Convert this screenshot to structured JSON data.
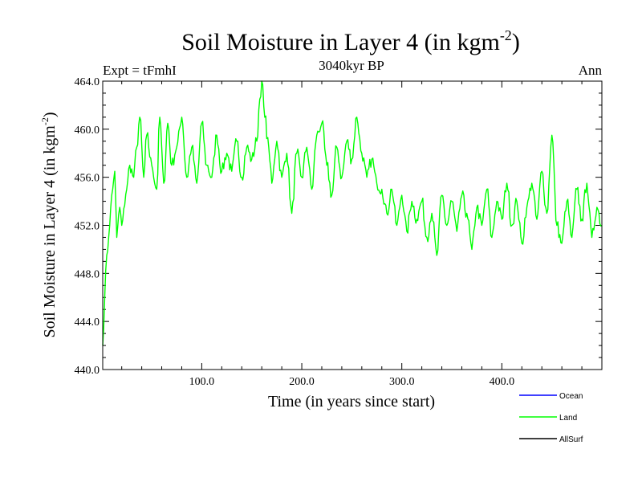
{
  "chart_data": {
    "type": "line",
    "title": "Soil Moisture in Layer 4 (in kgm",
    "title_superscript": "-2",
    "title_close": ")",
    "subtitle": "3040kyr BP",
    "left_label": "Expt = tFmhI",
    "right_label": "Ann",
    "xlabel": "Time (in years since start)",
    "ylabel": "Soil Moisture in Layer 4 (in kgm",
    "ylabel_superscript": "-2",
    "ylabel_close": ")",
    "xlim": [
      1,
      500
    ],
    "ylim": [
      440,
      464
    ],
    "x_ticks": [
      100,
      200,
      300,
      400
    ],
    "x_tick_labels": [
      "100.0",
      "200.0",
      "300.0",
      "400.0"
    ],
    "y_ticks": [
      440,
      444,
      448,
      452,
      456,
      460,
      464
    ],
    "y_tick_labels": [
      "440.0",
      "444.0",
      "448.0",
      "452.0",
      "456.0",
      "460.0",
      "464.0"
    ],
    "legend": [
      {
        "name": "Ocean",
        "color": "#0000ff"
      },
      {
        "name": "Land",
        "color": "#00ff00"
      },
      {
        "name": "AllSurf",
        "color": "#000000"
      }
    ],
    "series": [
      {
        "name": "Land",
        "color": "#00ff00",
        "anchors": [
          [
            1,
            442.0
          ],
          [
            3,
            446.0
          ],
          [
            5,
            449.5
          ],
          [
            8,
            452.0
          ],
          [
            10,
            454.5
          ],
          [
            13,
            456.5
          ],
          [
            15,
            451.0
          ],
          [
            18,
            453.5
          ],
          [
            20,
            452.0
          ],
          [
            25,
            455.0
          ],
          [
            28,
            457.0
          ],
          [
            32,
            456.0
          ],
          [
            35,
            458.5
          ],
          [
            38,
            461.0
          ],
          [
            42,
            456.0
          ],
          [
            45,
            459.5
          ],
          [
            50,
            457.0
          ],
          [
            55,
            455.0
          ],
          [
            58,
            461.0
          ],
          [
            62,
            455.5
          ],
          [
            66,
            460.5
          ],
          [
            70,
            457.0
          ],
          [
            75,
            458.5
          ],
          [
            80,
            461.0
          ],
          [
            85,
            456.0
          ],
          [
            90,
            458.5
          ],
          [
            95,
            455.5
          ],
          [
            100,
            460.5
          ],
          [
            105,
            457.0
          ],
          [
            110,
            456.0
          ],
          [
            115,
            459.5
          ],
          [
            120,
            456.5
          ],
          [
            125,
            458.0
          ],
          [
            130,
            456.5
          ],
          [
            135,
            459.0
          ],
          [
            140,
            456.0
          ],
          [
            145,
            458.5
          ],
          [
            150,
            457.5
          ],
          [
            155,
            459.0
          ],
          [
            158,
            462.5
          ],
          [
            160,
            464.0
          ],
          [
            163,
            461.0
          ],
          [
            167,
            458.5
          ],
          [
            170,
            455.5
          ],
          [
            175,
            459.0
          ],
          [
            180,
            456.0
          ],
          [
            185,
            458.0
          ],
          [
            190,
            453.0
          ],
          [
            195,
            458.0
          ],
          [
            200,
            456.0
          ],
          [
            205,
            458.5
          ],
          [
            210,
            455.0
          ],
          [
            215,
            459.5
          ],
          [
            220,
            460.5
          ],
          [
            225,
            457.0
          ],
          [
            230,
            454.5
          ],
          [
            235,
            458.5
          ],
          [
            240,
            456.0
          ],
          [
            245,
            459.0
          ],
          [
            250,
            457.5
          ],
          [
            255,
            461.0
          ],
          [
            260,
            458.0
          ],
          [
            265,
            456.0
          ],
          [
            270,
            457.5
          ],
          [
            275,
            455.5
          ],
          [
            280,
            455.0
          ],
          [
            285,
            453.0
          ],
          [
            290,
            455.0
          ],
          [
            295,
            452.0
          ],
          [
            300,
            454.5
          ],
          [
            305,
            451.5
          ],
          [
            310,
            454.0
          ],
          [
            315,
            452.5
          ],
          [
            320,
            454.0
          ],
          [
            325,
            451.0
          ],
          [
            330,
            453.0
          ],
          [
            335,
            449.5
          ],
          [
            340,
            454.5
          ],
          [
            345,
            452.0
          ],
          [
            350,
            454.0
          ],
          [
            355,
            451.5
          ],
          [
            360,
            454.5
          ],
          [
            365,
            453.0
          ],
          [
            370,
            450.0
          ],
          [
            375,
            453.5
          ],
          [
            380,
            452.0
          ],
          [
            385,
            455.0
          ],
          [
            390,
            451.0
          ],
          [
            395,
            454.0
          ],
          [
            400,
            452.5
          ],
          [
            405,
            455.5
          ],
          [
            410,
            452.0
          ],
          [
            415,
            454.0
          ],
          [
            420,
            450.5
          ],
          [
            425,
            453.5
          ],
          [
            430,
            455.5
          ],
          [
            435,
            452.5
          ],
          [
            440,
            456.5
          ],
          [
            445,
            453.0
          ],
          [
            450,
            459.5
          ],
          [
            455,
            452.0
          ],
          [
            460,
            450.5
          ],
          [
            465,
            454.0
          ],
          [
            470,
            451.0
          ],
          [
            475,
            455.0
          ],
          [
            480,
            452.5
          ],
          [
            485,
            455.5
          ],
          [
            490,
            451.0
          ],
          [
            495,
            453.5
          ],
          [
            500,
            452.0
          ]
        ]
      }
    ]
  }
}
